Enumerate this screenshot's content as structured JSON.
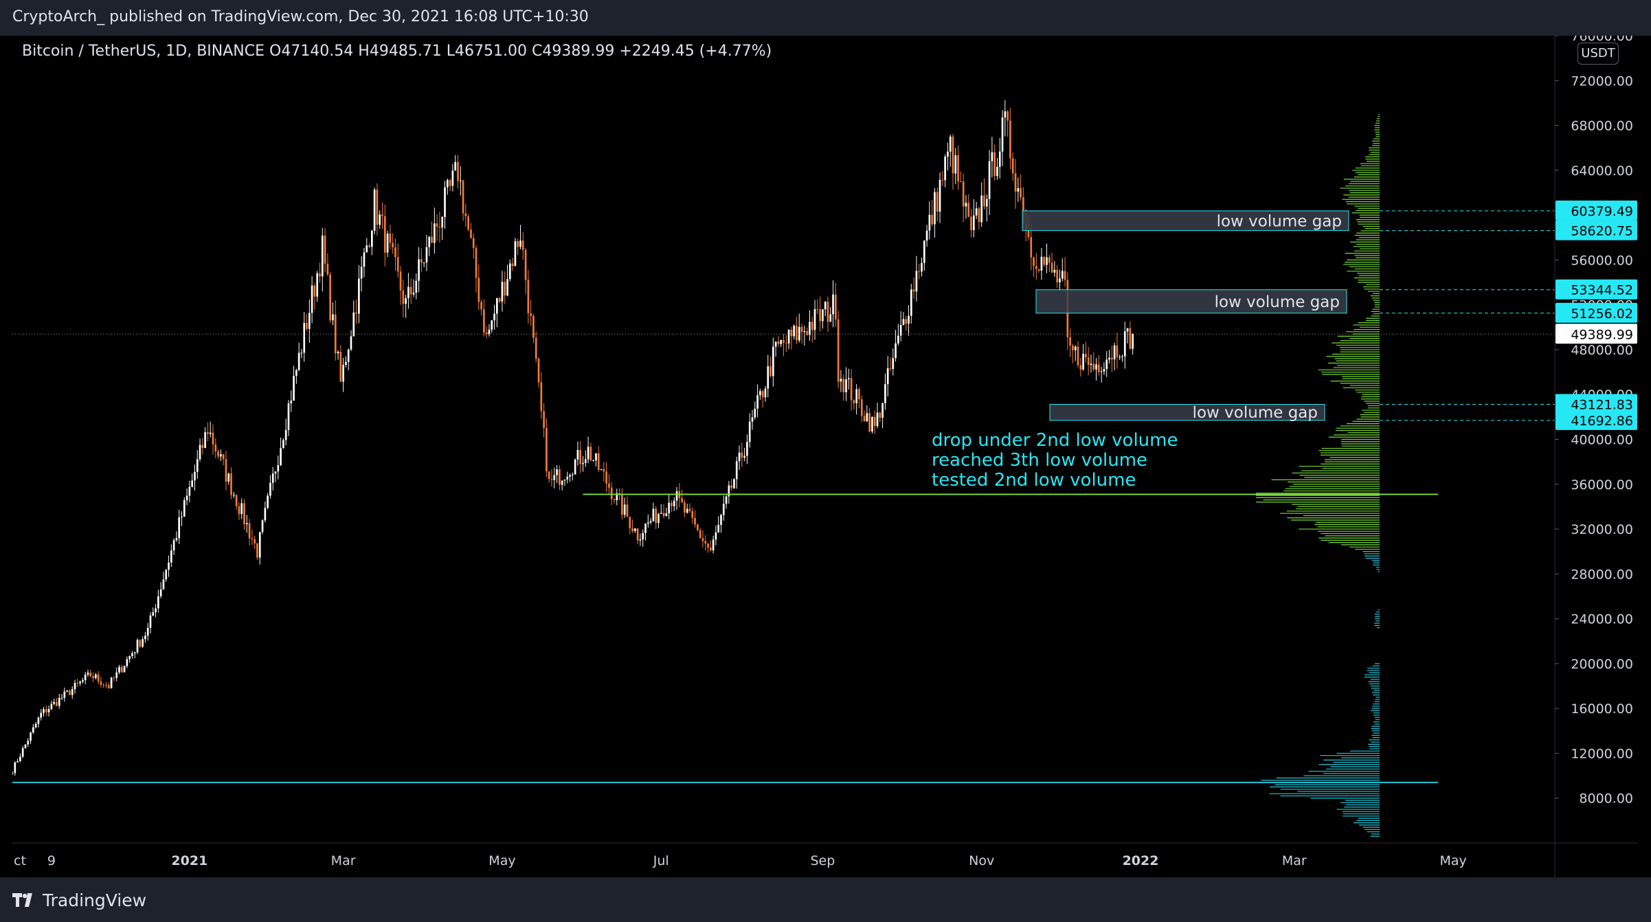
{
  "header": {
    "publish_line": "CryptoArch_ published on TradingView.com, Dec 30, 2021 16:08 UTC+10:30"
  },
  "legend": {
    "symbol_line": "Bitcoin / TetherUS, 1D, BINANCE  O47140.54  H49485.71  L46751.00  C49389.99  +2249.45 (+4.77%)"
  },
  "footer": {
    "brand": "TradingView"
  },
  "currency_label": "USDT",
  "annotation_lines": [
    "drop under 2nd low volume",
    "reached 3th low volume",
    "tested 2nd low volume"
  ],
  "colors": {
    "up_candle": "#ffffff",
    "down_candle": "#f57c34",
    "volume_green": "#76d93a",
    "volume_cyan": "#26c6da",
    "annotation": "#26e8f5",
    "support_line_green": "#76d93a",
    "support_line_cyan": "#26c6da",
    "gap_box": "#3a3e4a",
    "price_badge": "#26e8f5"
  },
  "chart_data": {
    "type": "candlestick",
    "title": "Bitcoin / TetherUS, 1D, BINANCE",
    "ylim": [
      4000,
      76000
    ],
    "y_ticks": [
      8000,
      12000,
      16000,
      20000,
      24000,
      28000,
      32000,
      36000,
      40000,
      44000,
      48000,
      52000,
      56000,
      60000,
      64000,
      68000,
      72000,
      76000
    ],
    "y_tick_labels": [
      "8000.00",
      "12000.00",
      "16000.00",
      "20000.00",
      "24000.00",
      "28000.00",
      "32000.00",
      "36000.00",
      "40000.00",
      "44000.00",
      "48000.00",
      "52000.00",
      "56000.00",
      "60000.00",
      "64000.00",
      "68000.00",
      "72000.00",
      "76000.00"
    ],
    "x_range": [
      "2020-10-25",
      "2022-06-09"
    ],
    "x_ticks": [
      {
        "label": "ct",
        "date": "2020-10-25"
      },
      {
        "label": "9",
        "date": "2020-11-09"
      },
      {
        "label": "2021",
        "date": "2021-01-01"
      },
      {
        "label": "Mar",
        "date": "2021-03-01"
      },
      {
        "label": "May",
        "date": "2021-05-01"
      },
      {
        "label": "Jul",
        "date": "2021-07-01"
      },
      {
        "label": "Sep",
        "date": "2021-09-01"
      },
      {
        "label": "Nov",
        "date": "2021-11-01"
      },
      {
        "label": "2022",
        "date": "2022-01-01"
      },
      {
        "label": "Mar",
        "date": "2022-03-01"
      },
      {
        "label": "May",
        "date": "2022-05-01"
      }
    ],
    "price_path": [
      [
        "2020-10-25",
        10500
      ],
      [
        "2020-11-05",
        15500
      ],
      [
        "2020-11-24",
        19000
      ],
      [
        "2020-12-01",
        18000
      ],
      [
        "2020-12-16",
        23000
      ],
      [
        "2021-01-08",
        41000
      ],
      [
        "2021-01-27",
        30000
      ],
      [
        "2021-02-21",
        57000
      ],
      [
        "2021-02-28",
        45000
      ],
      [
        "2021-03-13",
        61000
      ],
      [
        "2021-03-25",
        52000
      ],
      [
        "2021-04-14",
        64000
      ],
      [
        "2021-04-25",
        49000
      ],
      [
        "2021-05-08",
        58500
      ],
      [
        "2021-05-19",
        36000
      ],
      [
        "2021-06-03",
        39000
      ],
      [
        "2021-06-22",
        31500
      ],
      [
        "2021-07-06",
        35000
      ],
      [
        "2021-07-20",
        30000
      ],
      [
        "2021-08-14",
        48000
      ],
      [
        "2021-09-06",
        52000
      ],
      [
        "2021-09-07",
        46000
      ],
      [
        "2021-09-21",
        41000
      ],
      [
        "2021-10-20",
        66000
      ],
      [
        "2021-10-28",
        58000
      ],
      [
        "2021-11-10",
        68000
      ],
      [
        "2021-11-20",
        57000
      ],
      [
        "2021-12-03",
        53500
      ],
      [
        "2021-12-04",
        48000
      ],
      [
        "2021-12-14",
        46500
      ],
      [
        "2021-12-29",
        49390
      ]
    ],
    "last_price": 49389.99,
    "price_labels": [
      "60379.49",
      "58620.75",
      "53344.52",
      "51256.02",
      "49389.99",
      "43121.83",
      "41692.86"
    ],
    "price_levels": [
      60379.49,
      58620.75,
      53344.52,
      51256.02,
      49389.99,
      43121.83,
      41692.86
    ],
    "low_volume_gaps": [
      {
        "label": "low volume gap",
        "from": 58620.75,
        "to": 60379.49
      },
      {
        "label": "low volume gap",
        "from": 51256.02,
        "to": 53344.52
      },
      {
        "label": "low volume gap",
        "from": 41692.86,
        "to": 43121.83
      }
    ],
    "horizontal_lines": [
      {
        "price": 35100,
        "color": "green"
      },
      {
        "price": 9400,
        "color": "cyan"
      }
    ],
    "volume_profile": {
      "peak_price": 35000,
      "cyan_below": 30000,
      "profile": [
        [
          4600,
          0.02
        ],
        [
          5000,
          0.03
        ],
        [
          6000,
          0.06
        ],
        [
          7000,
          0.08
        ],
        [
          7800,
          0.1
        ],
        [
          8200,
          0.18
        ],
        [
          8600,
          0.22
        ],
        [
          9000,
          0.24
        ],
        [
          9400,
          0.26
        ],
        [
          10000,
          0.18
        ],
        [
          10600,
          0.14
        ],
        [
          11200,
          0.1
        ],
        [
          11800,
          0.12
        ],
        [
          12400,
          0.03
        ],
        [
          13000,
          0.02
        ],
        [
          14000,
          0.02
        ],
        [
          15000,
          0.01
        ],
        [
          16000,
          0.02
        ],
        [
          17000,
          0.01
        ],
        [
          18000,
          0.02
        ],
        [
          19000,
          0.03
        ],
        [
          19800,
          0.02
        ],
        [
          20200,
          0.0
        ],
        [
          23000,
          0.0
        ],
        [
          23400,
          0.01
        ],
        [
          24000,
          0.01
        ],
        [
          24600,
          0.01
        ],
        [
          25000,
          0.0
        ],
        [
          28000,
          0.0
        ],
        [
          28600,
          0.01
        ],
        [
          29200,
          0.02
        ],
        [
          30000,
          0.05
        ],
        [
          31000,
          0.12
        ],
        [
          32000,
          0.17
        ],
        [
          33000,
          0.2
        ],
        [
          34000,
          0.23
        ],
        [
          35000,
          0.28
        ],
        [
          36000,
          0.23
        ],
        [
          37000,
          0.18
        ],
        [
          38000,
          0.14
        ],
        [
          39000,
          0.12
        ],
        [
          40000,
          0.1
        ],
        [
          41000,
          0.08
        ],
        [
          42000,
          0.04
        ],
        [
          43000,
          0.03
        ],
        [
          44000,
          0.05
        ],
        [
          45000,
          0.09
        ],
        [
          46000,
          0.11
        ],
        [
          47000,
          0.12
        ],
        [
          48000,
          0.1
        ],
        [
          49000,
          0.09
        ],
        [
          50000,
          0.06
        ],
        [
          51000,
          0.02
        ],
        [
          52000,
          0.01
        ],
        [
          53000,
          0.02
        ],
        [
          54000,
          0.04
        ],
        [
          55000,
          0.06
        ],
        [
          56000,
          0.07
        ],
        [
          57000,
          0.06
        ],
        [
          58000,
          0.06
        ],
        [
          59000,
          0.04
        ],
        [
          60000,
          0.05
        ],
        [
          61000,
          0.07
        ],
        [
          62000,
          0.08
        ],
        [
          63000,
          0.07
        ],
        [
          64000,
          0.05
        ],
        [
          65000,
          0.03
        ],
        [
          66000,
          0.02
        ],
        [
          67000,
          0.01
        ],
        [
          68000,
          0.01
        ],
        [
          69000,
          0.003
        ]
      ]
    }
  }
}
